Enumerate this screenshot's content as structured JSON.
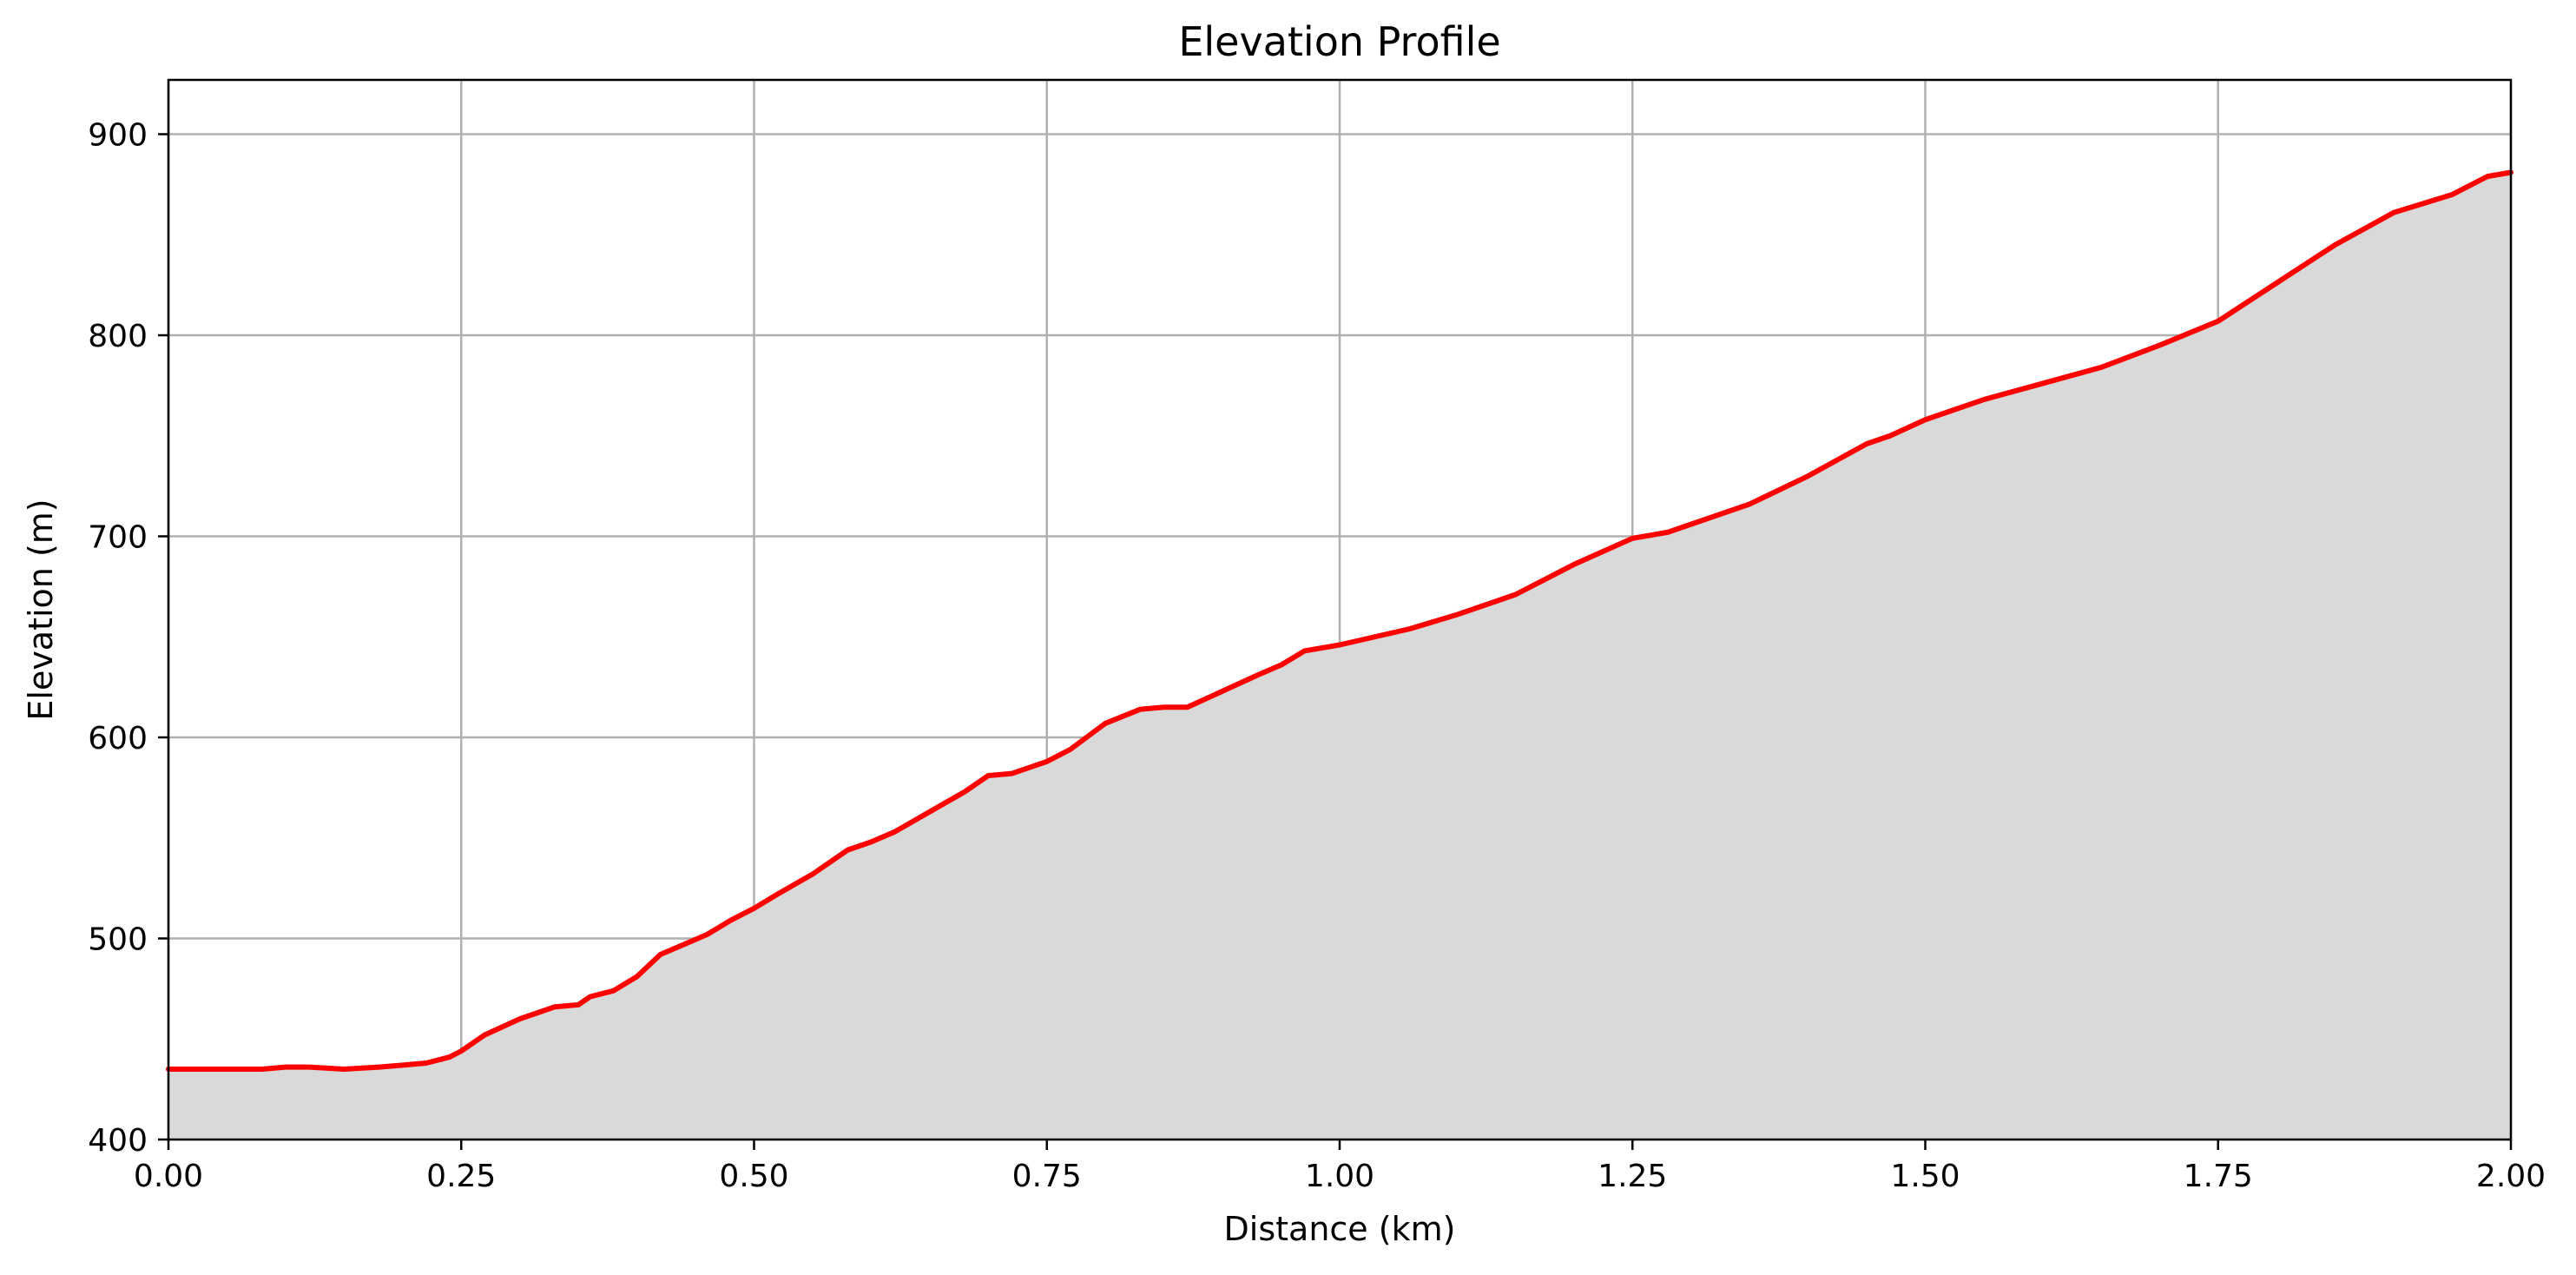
{
  "chart_data": {
    "type": "area",
    "title": "Elevation Profile",
    "xlabel": "Distance (km)",
    "ylabel": "Elevation (m)",
    "xlim": [
      0,
      2.0
    ],
    "ylim": [
      400,
      927
    ],
    "x_ticks": [
      "0.00",
      "0.25",
      "0.50",
      "0.75",
      "1.00",
      "1.25",
      "1.50",
      "1.75",
      "2.00"
    ],
    "y_ticks": [
      "400",
      "500",
      "600",
      "700",
      "800",
      "900"
    ],
    "grid": true,
    "line_color": "#ff0000",
    "fill_color": "#d9d9d9",
    "grid_color": "#b0b0b0",
    "series": [
      {
        "x": [
          0,
          0.02,
          0.05,
          0.08,
          0.1,
          0.12,
          0.15,
          0.18,
          0.2,
          0.22,
          0.24,
          0.25,
          0.27,
          0.3,
          0.33,
          0.35,
          0.36,
          0.38,
          0.4,
          0.42,
          0.44,
          0.46,
          0.48,
          0.5,
          0.52,
          0.55,
          0.58,
          0.6,
          0.62,
          0.65,
          0.68,
          0.7,
          0.72,
          0.75,
          0.77,
          0.8,
          0.83,
          0.85,
          0.87,
          0.9,
          0.93,
          0.95,
          0.97,
          1.0,
          1.03,
          1.06,
          1.1,
          1.15,
          1.2,
          1.25,
          1.28,
          1.3,
          1.35,
          1.4,
          1.45,
          1.47,
          1.5,
          1.55,
          1.6,
          1.65,
          1.7,
          1.75,
          1.8,
          1.85,
          1.9,
          1.95,
          1.98,
          2.0
        ],
        "y": [
          435,
          435,
          435,
          435,
          436,
          436,
          435,
          436,
          437,
          438,
          441,
          444,
          452,
          460,
          466,
          467,
          471,
          474,
          481,
          492,
          497,
          502,
          509,
          515,
          522,
          532,
          544,
          548,
          553,
          563,
          573,
          581,
          582,
          588,
          594,
          607,
          614,
          615,
          615,
          623,
          631,
          636,
          643,
          646,
          650,
          654,
          661,
          671,
          686,
          699,
          702,
          706,
          716,
          730,
          746,
          750,
          758,
          768,
          776,
          784,
          795,
          807,
          826,
          845,
          861,
          870,
          879,
          881
        ]
      }
    ]
  }
}
